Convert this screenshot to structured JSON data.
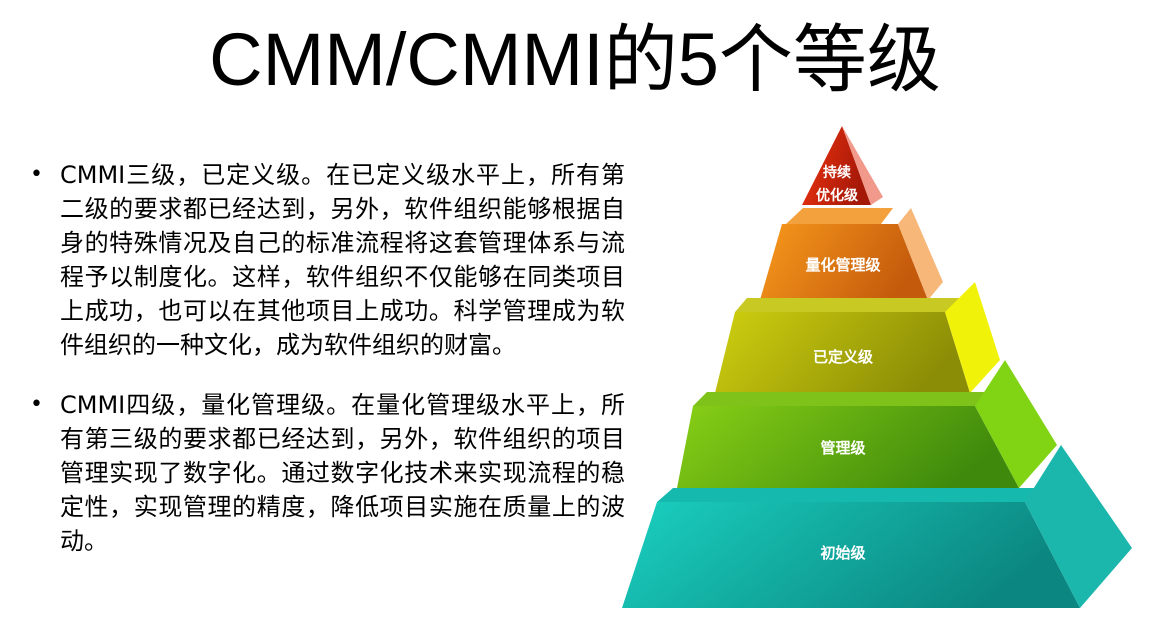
{
  "title": "CMM/CMMI的5个等级",
  "bullets": [
    {
      "marker": "•",
      "text": "CMMI三级，已定义级。在已定义级水平上，所有第二级的要求都已经达到，另外，软件组织能够根据自身的特殊情况及自己的标准流程将这套管理体系与流程予以制度化。这样，软件组织不仅能够在同类项目上成功，也可以在其他项目上成功。科学管理成为软件组织的一种文化，成为软件组织的财富。"
    },
    {
      "marker": "•",
      "text": "CMMI四级，量化管理级。在量化管理级水平上，所有第三级的要求都已经达到，另外，软件组织的项目管理实现了数字化。通过数字化技术来实现流程的稳定性，实现管理的精度，降低项目实施在质量上的波动。"
    }
  ],
  "pyramid": {
    "levels": [
      {
        "label_line1": "持续",
        "label_line2": "优化级",
        "front_color": "#d8210d",
        "side_color": "#f1998a"
      },
      {
        "label": "量化管理级",
        "front_color": "#e87a14",
        "side_color": "#f7b778"
      },
      {
        "label": "已定义级",
        "front_color": "#b4b50c",
        "side_color": "#f1f20a"
      },
      {
        "label": "管理级",
        "front_color": "#5fae12",
        "side_color": "#80d414"
      },
      {
        "label": "初始级",
        "front_color": "#12aca3",
        "side_color": "#1bb7ac"
      }
    ]
  }
}
